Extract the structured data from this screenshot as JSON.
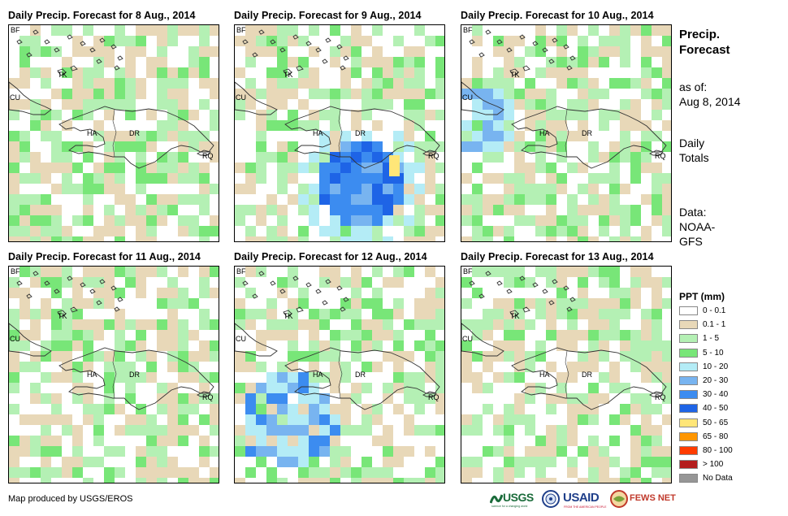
{
  "panels": [
    {
      "title": "Daily Precip. Forecast for 8 Aug., 2014",
      "seed": 11,
      "heavy": []
    },
    {
      "title": "Daily Precip. Forecast for 9 Aug., 2014",
      "seed": 23,
      "heavy": [
        "blue-central",
        "yellow-spot"
      ]
    },
    {
      "title": "Daily Precip. Forecast for 10 Aug., 2014",
      "seed": 37,
      "heavy": [
        "blue-west"
      ]
    },
    {
      "title": "Daily Precip. Forecast for 11 Aug., 2014",
      "seed": 51,
      "heavy": []
    },
    {
      "title": "Daily Precip. Forecast for 12 Aug., 2014",
      "seed": 67,
      "heavy": [
        "blue-south"
      ]
    },
    {
      "title": "Daily Precip. Forecast for 13 Aug., 2014",
      "seed": 83,
      "heavy": []
    }
  ],
  "map_labels": {
    "bf": "BF",
    "tk": "TK",
    "cu": "CU",
    "ha": "HA",
    "dr": "DR",
    "rq": "RQ"
  },
  "side": {
    "title_line1": "Precip.",
    "title_line2": "Forecast",
    "asof_line1": "as of:",
    "asof_line2": "Aug 8, 2014",
    "totals_line1": "Daily",
    "totals_line2": "Totals",
    "data_line1": "Data:",
    "data_line2": "NOAA-",
    "data_line3": "GFS"
  },
  "legend": {
    "title": "PPT (mm)",
    "items": [
      {
        "label": "0 - 0.1",
        "color": "#ffffff"
      },
      {
        "label": "0.1 - 1",
        "color": "#e8d8b8"
      },
      {
        "label": "1 - 5",
        "color": "#b4f0b4"
      },
      {
        "label": "5 - 10",
        "color": "#78e678"
      },
      {
        "label": "10 - 20",
        "color": "#b4ecf6"
      },
      {
        "label": "20 - 30",
        "color": "#78b4f0"
      },
      {
        "label": "30 - 40",
        "color": "#3c8cf0"
      },
      {
        "label": "40 - 50",
        "color": "#1e64e6"
      },
      {
        "label": "50 - 65",
        "color": "#ffe678"
      },
      {
        "label": "65 - 80",
        "color": "#ff9600"
      },
      {
        "label": "80 - 100",
        "color": "#ff3c00"
      },
      {
        "label": "> 100",
        "color": "#b41e1e"
      },
      {
        "label": "No Data",
        "color": "#969696"
      }
    ]
  },
  "credit": "Map produced by USGS/EROS",
  "logos": {
    "usgs": "USGS",
    "usgs_tag": "science for a changing world",
    "usaid": "USAID",
    "usaid_tag": "FROM THE AMERICAN PEOPLE",
    "fews": "FEWS NET"
  }
}
